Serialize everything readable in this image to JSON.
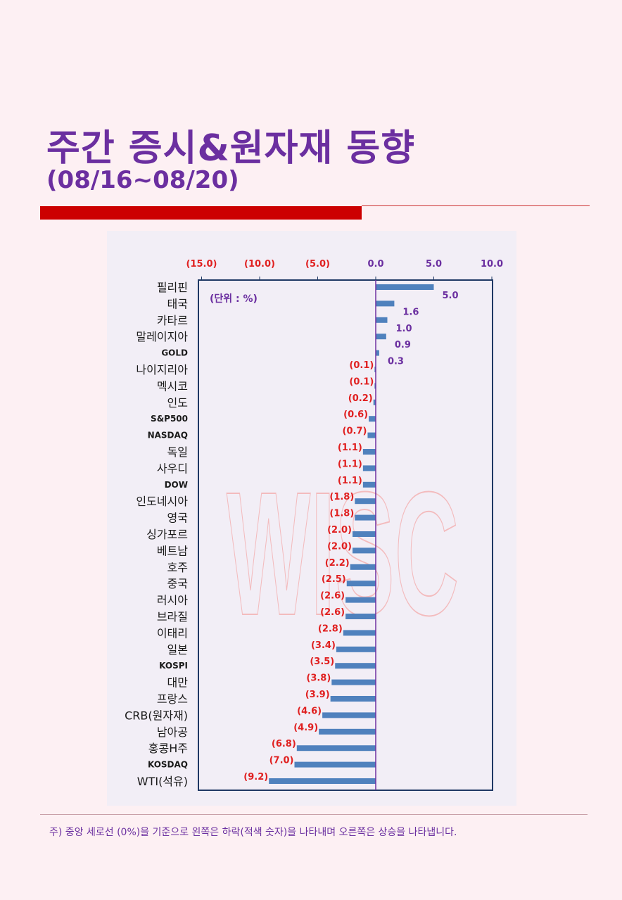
{
  "header": {
    "title": "주간 증시&원자재 동향",
    "subtitle": "(08/16~08/20)"
  },
  "footer": {
    "note": "주) 중앙 세로선 (0%)을 기준으로 왼쪽은 하락(적색 숫자)을 나타내며 오른쪽은 상승을 나타냅니다."
  },
  "colors": {
    "title": "#6b2fa0",
    "accent_bar": "#cc0000",
    "bar": "#4f81bd",
    "negative_label": "#e02020",
    "positive_label": "#6b2fa0",
    "frame": "#1f3864",
    "zero_line": "#7030a0",
    "watermark": "#f4a6a6"
  },
  "chart_data": {
    "type": "bar",
    "orientation": "horizontal",
    "unit_label": "(단위 : %)",
    "watermark": "WISC",
    "xlim": [
      -15,
      10
    ],
    "xticks": [
      {
        "value": -15,
        "label": "(15.0)"
      },
      {
        "value": -10,
        "label": "(10.0)"
      },
      {
        "value": -5,
        "label": "(5.0)"
      },
      {
        "value": 0,
        "label": "0.0"
      },
      {
        "value": 5,
        "label": "5.0"
      },
      {
        "value": 10,
        "label": "10.0"
      }
    ],
    "categories": [
      "필리핀",
      "태국",
      "카타르",
      "말레이지아",
      "GOLD",
      "나이지리아",
      "멕시코",
      "인도",
      "S&P500",
      "NASDAQ",
      "독일",
      "사우디",
      "DOW",
      "인도네시아",
      "영국",
      "싱가포르",
      "베트남",
      "호주",
      "중국",
      "러시아",
      "브라질",
      "이태리",
      "일본",
      "KOSPI",
      "대만",
      "프랑스",
      "CRB(원자재)",
      "남아공",
      "홍콩H주",
      "KOSDAQ",
      "WTI(석유)"
    ],
    "values": [
      5.0,
      1.6,
      1.0,
      0.9,
      0.3,
      -0.1,
      -0.1,
      -0.2,
      -0.6,
      -0.7,
      -1.1,
      -1.1,
      -1.1,
      -1.8,
      -1.8,
      -2.0,
      -2.0,
      -2.2,
      -2.5,
      -2.6,
      -2.6,
      -2.8,
      -3.4,
      -3.5,
      -3.8,
      -3.9,
      -4.6,
      -4.9,
      -6.8,
      -7.0,
      -9.2
    ],
    "value_labels": [
      "5.0",
      "1.6",
      "1.0",
      "0.9",
      "0.3",
      "(0.1)",
      "(0.1)",
      "(0.2)",
      "(0.6)",
      "(0.7)",
      "(1.1)",
      "(1.1)",
      "(1.1)",
      "(1.8)",
      "(1.8)",
      "(2.0)",
      "(2.0)",
      "(2.2)",
      "(2.5)",
      "(2.6)",
      "(2.6)",
      "(2.8)",
      "(3.4)",
      "(3.5)",
      "(3.8)",
      "(3.9)",
      "(4.6)",
      "(4.9)",
      "(6.8)",
      "(7.0)",
      "(9.2)"
    ],
    "legend": "none",
    "grid": false
  }
}
